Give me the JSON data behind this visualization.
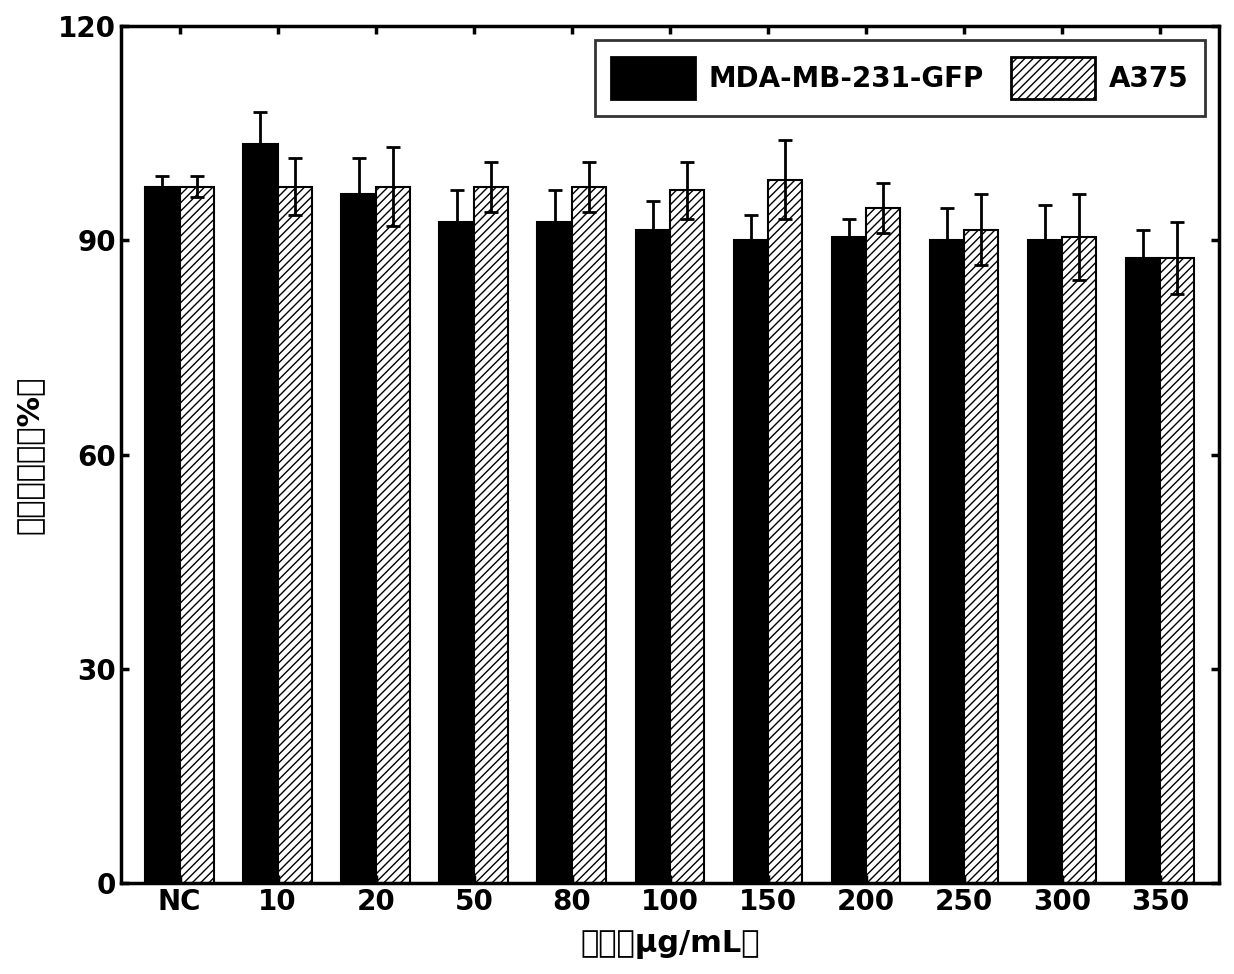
{
  "categories": [
    "NC",
    "10",
    "20",
    "50",
    "80",
    "100",
    "150",
    "200",
    "250",
    "300",
    "350"
  ],
  "series1_name": "MDA-MB-231-GFP",
  "series2_name": "A375",
  "series1_values": [
    97.5,
    103.5,
    96.5,
    92.5,
    92.5,
    91.5,
    90.0,
    90.5,
    90.0,
    90.0,
    87.5
  ],
  "series2_values": [
    97.5,
    97.5,
    97.5,
    97.5,
    97.5,
    97.0,
    98.5,
    94.5,
    91.5,
    90.5,
    87.5
  ],
  "series1_errors": [
    1.5,
    4.5,
    5.0,
    4.5,
    4.5,
    4.0,
    3.5,
    2.5,
    4.5,
    5.0,
    4.0
  ],
  "series2_errors": [
    1.5,
    4.0,
    5.5,
    3.5,
    3.5,
    4.0,
    5.5,
    3.5,
    5.0,
    6.0,
    5.0
  ],
  "ylabel": "细胞存活率（%）",
  "xlabel": "浓度（μg/mL）",
  "ylim": [
    0,
    120
  ],
  "yticks": [
    0,
    30,
    60,
    90,
    120
  ],
  "bar_color1": "#000000",
  "bar_color2": "#ffffff",
  "hatch2": "////",
  "bar_width": 0.35,
  "figsize": [
    12.34,
    9.74
  ],
  "dpi": 100,
  "font_size_axis": 22,
  "font_size_tick": 20,
  "font_size_legend": 20,
  "edge_color": "#000000"
}
